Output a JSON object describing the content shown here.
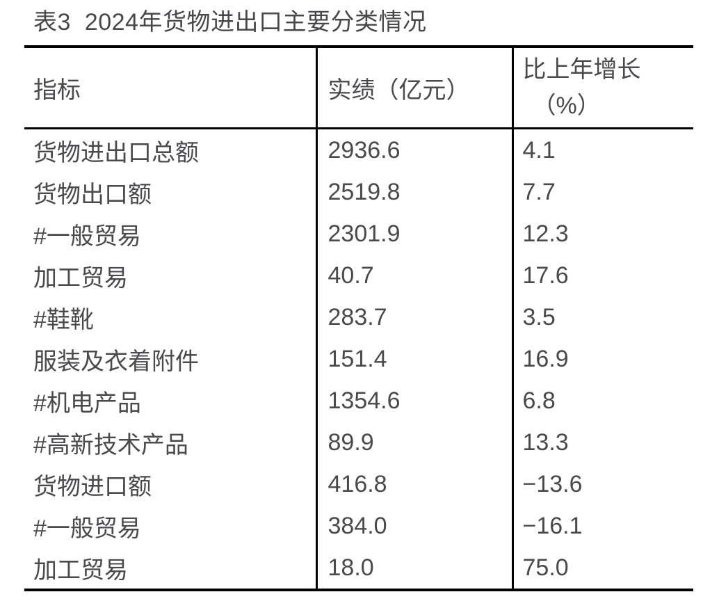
{
  "page": {
    "title": "表3  2024年货物进出口主要分类情况"
  },
  "table": {
    "header": {
      "indicator": "指标",
      "value": "实绩（亿元）",
      "growth_line1": "比上年增长",
      "growth_line2": "（%）"
    },
    "rows": [
      {
        "indicator": "货物进出口总额",
        "value": "2936.6",
        "growth": "4.1"
      },
      {
        "indicator": "货物出口额",
        "value": "2519.8",
        "growth": "7.7"
      },
      {
        "indicator": "#一般贸易",
        "value": "2301.9",
        "growth": "12.3"
      },
      {
        "indicator": "加工贸易",
        "value": "40.7",
        "growth": "17.6"
      },
      {
        "indicator": "#鞋靴",
        "value": "283.7",
        "growth": "3.5"
      },
      {
        "indicator": "服装及衣着附件",
        "value": "151.4",
        "growth": "16.9"
      },
      {
        "indicator": "#机电产品",
        "value": "1354.6",
        "growth": "6.8"
      },
      {
        "indicator": "#高新技术产品",
        "value": "89.9",
        "growth": "13.3"
      },
      {
        "indicator": "货物进口额",
        "value": "416.8",
        "growth": "−13.6"
      },
      {
        "indicator": "#一般贸易",
        "value": "384.0",
        "growth": "−16.1"
      },
      {
        "indicator": "加工贸易",
        "value": "18.0",
        "growth": "75.0"
      }
    ]
  },
  "colors": {
    "background": "#ffffff",
    "text": "#4a4a4c",
    "border": "#000000"
  }
}
